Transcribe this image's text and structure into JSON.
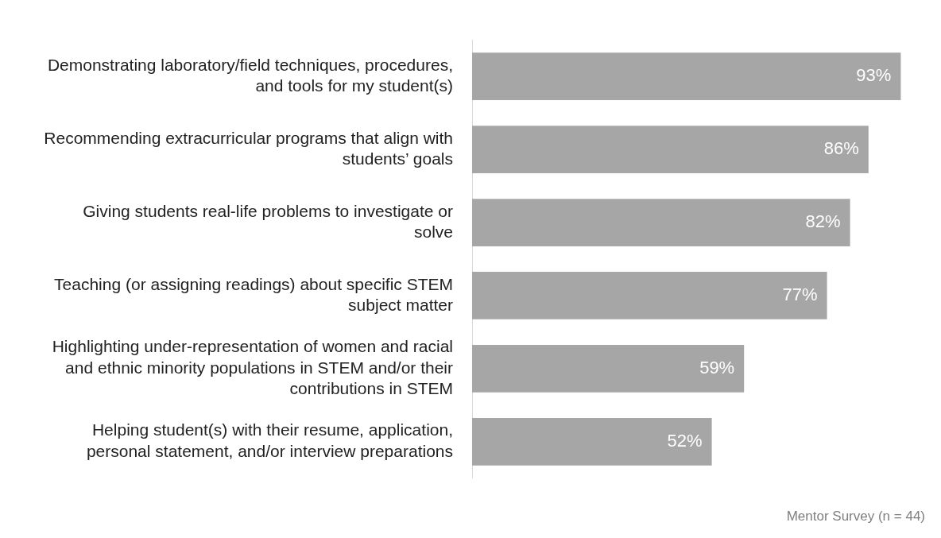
{
  "chart_data": {
    "type": "bar",
    "orientation": "horizontal",
    "categories": [
      "Demonstrating laboratory/field techniques, procedures, and tools for my student(s)",
      "Recommending extracurricular programs that align with students’ goals",
      "Giving students real-life problems to investigate or solve",
      "Teaching (or assigning readings) about specific STEM subject matter",
      "Highlighting under-representation of women and racial and ethnic minority populations in STEM and/or their contributions in STEM",
      "Helping student(s) with their resume, application, personal statement, and/or interview preparations"
    ],
    "values": [
      93,
      86,
      82,
      77,
      59,
      52
    ],
    "value_labels": [
      "93%",
      "86%",
      "82%",
      "77%",
      "59%",
      "52%"
    ],
    "color": "#a6a6a6",
    "tick_labels": "y",
    "grid": false,
    "legend": false,
    "annotations": [
      "Mentor Survey (n = 44)"
    ]
  }
}
